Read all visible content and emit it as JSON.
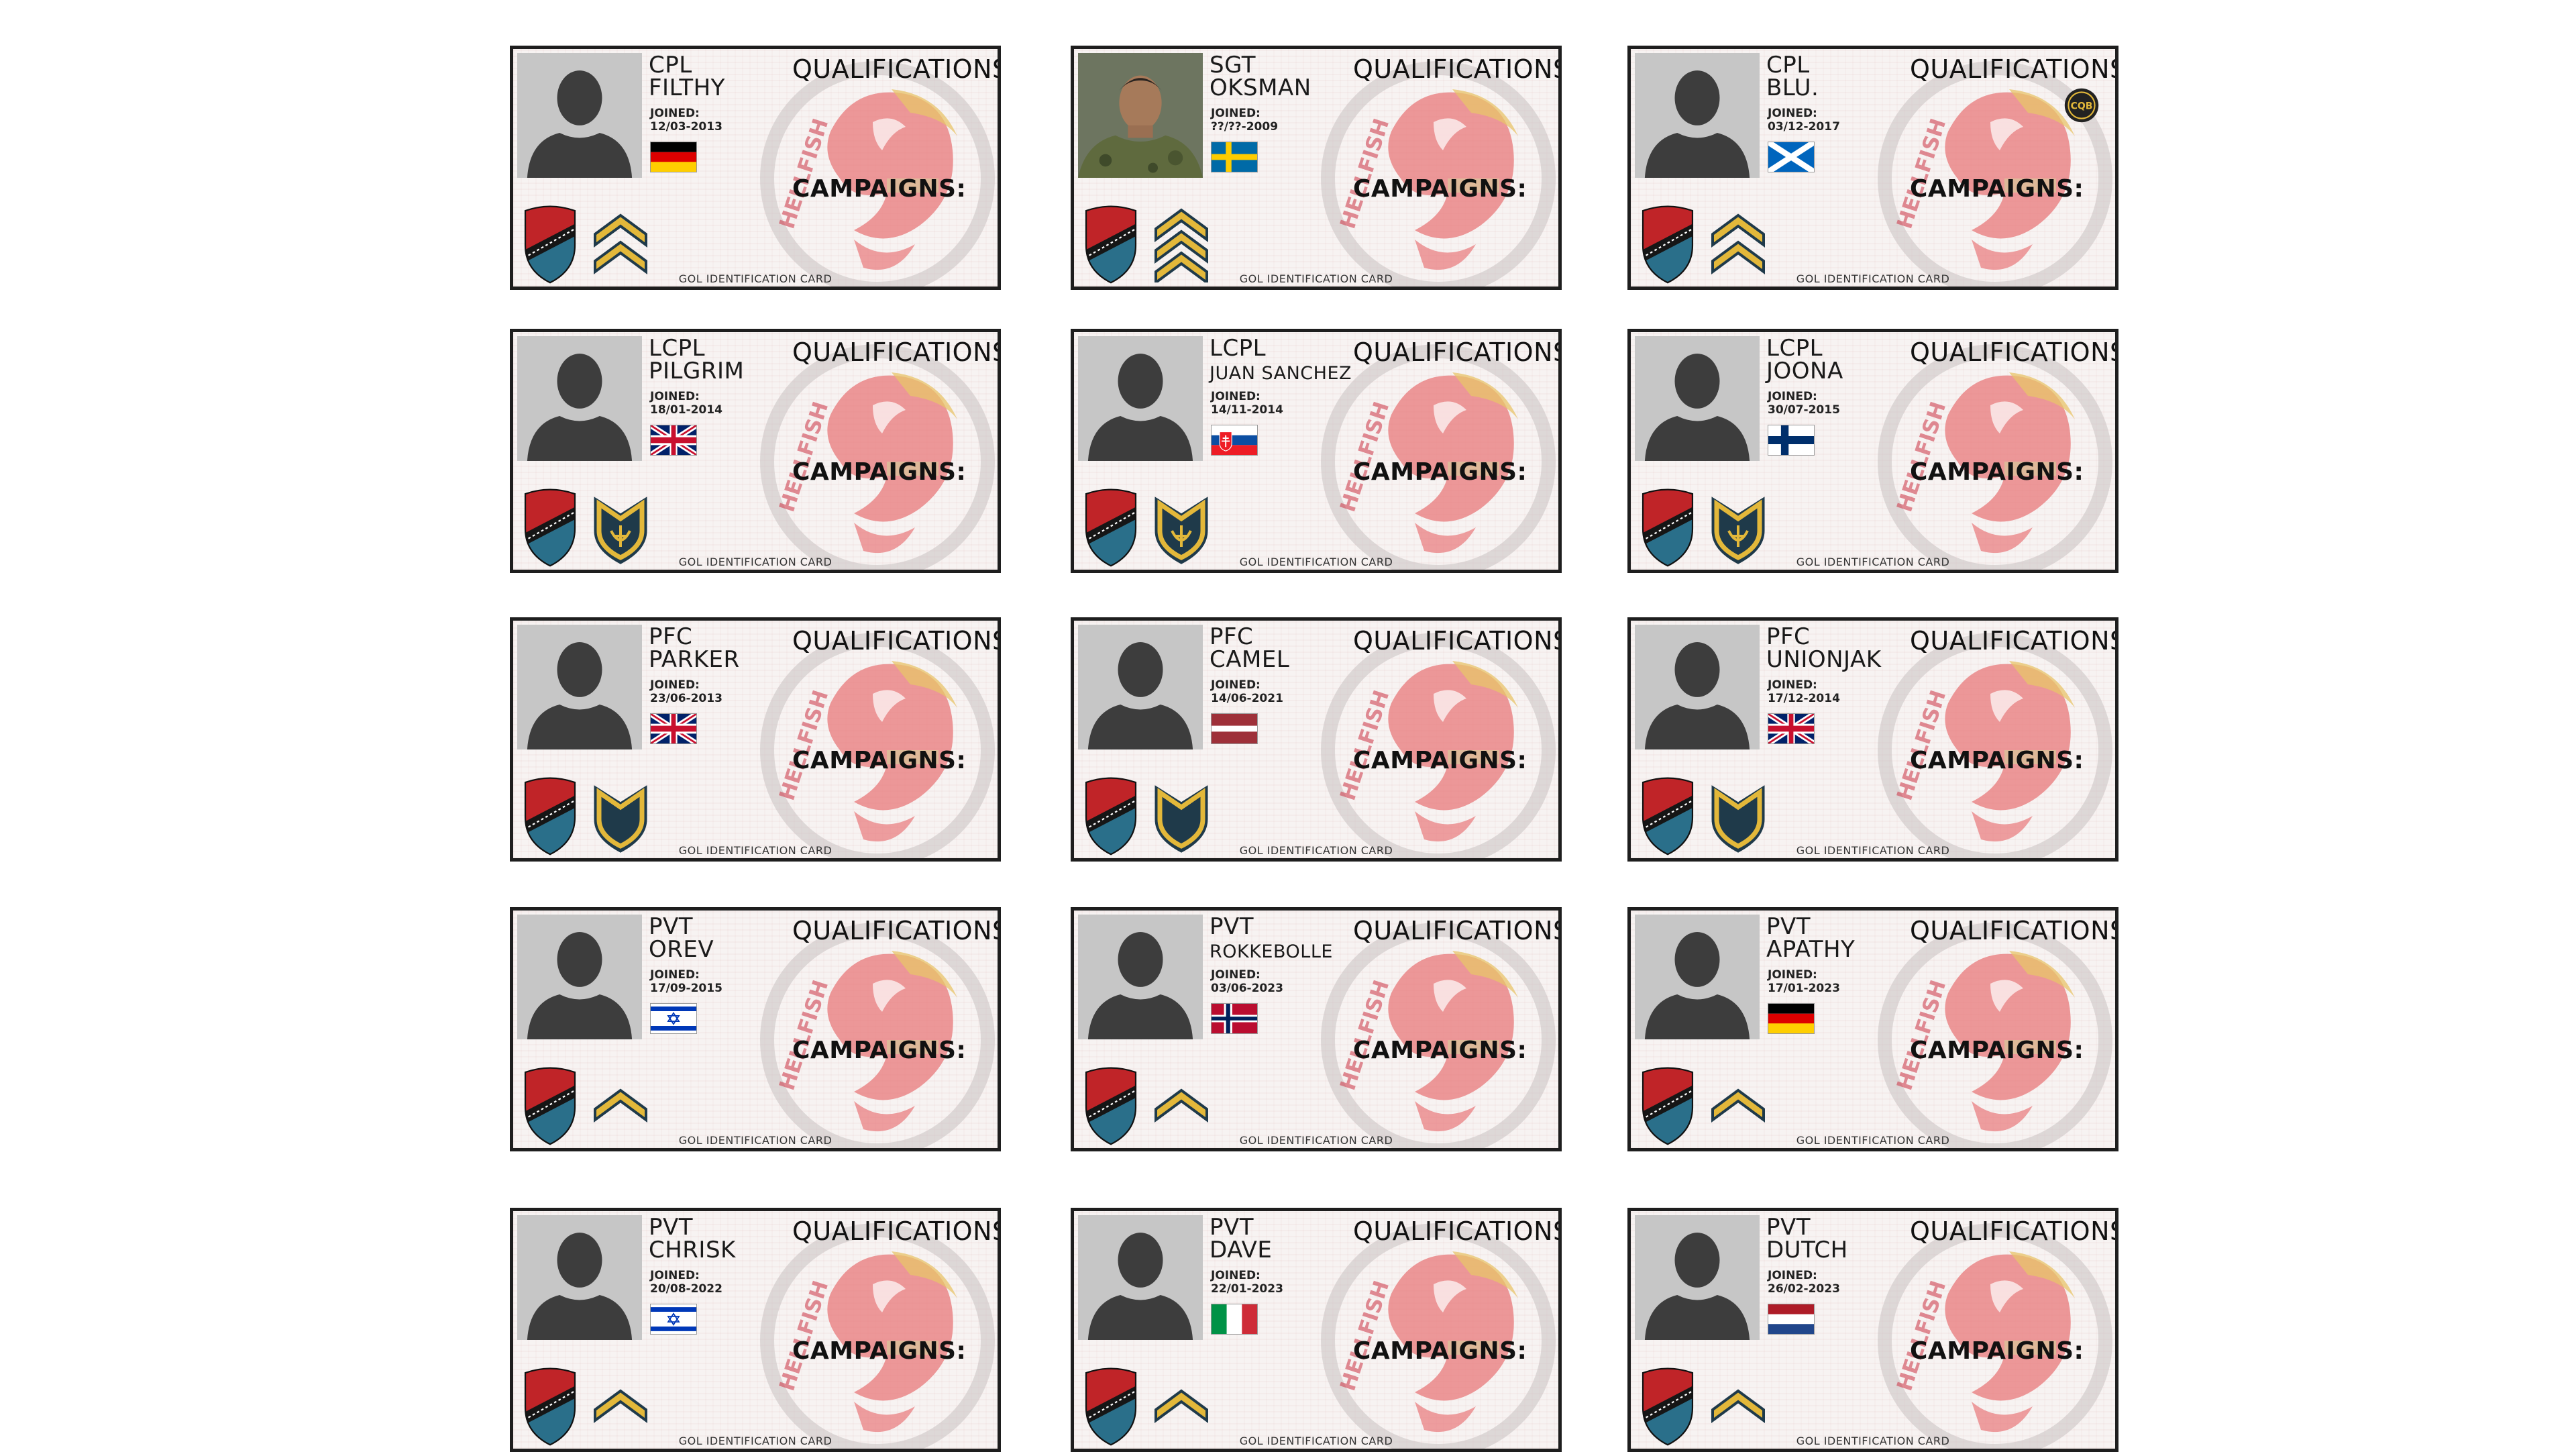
{
  "cards": [
    {
      "rank": "CPL",
      "name": "FILTHY",
      "joined_label": "JOINED:",
      "joined": "12/03-2013",
      "flag": "germany",
      "insignia": "cpl",
      "portrait": "silhouette"
    },
    {
      "rank": "SGT",
      "name": "OKSMAN",
      "joined_label": "JOINED:",
      "joined": "??/??-2009",
      "flag": "sweden",
      "insignia": "sgt",
      "portrait": "photo"
    },
    {
      "rank": "CPL",
      "name": "BLU.",
      "joined_label": "JOINED:",
      "joined": "03/12-2017",
      "flag": "scotland",
      "insignia": "cpl",
      "portrait": "silhouette",
      "badge": "CQB"
    },
    {
      "rank": "LCPL",
      "name": "PILGRIM",
      "joined_label": "JOINED:",
      "joined": "18/01-2014",
      "flag": "uk",
      "insignia": "lcpl",
      "portrait": "silhouette"
    },
    {
      "rank": "LCPL",
      "name": "JUAN SANCHEZ",
      "joined_label": "JOINED:",
      "joined": "14/11-2014",
      "flag": "slovakia",
      "insignia": "lcpl",
      "portrait": "silhouette"
    },
    {
      "rank": "LCPL",
      "name": "JOONA",
      "joined_label": "JOINED:",
      "joined": "30/07-2015",
      "flag": "finland",
      "insignia": "lcpl",
      "portrait": "silhouette"
    },
    {
      "rank": "PFC",
      "name": "PARKER",
      "joined_label": "JOINED:",
      "joined": "23/06-2013",
      "flag": "uk",
      "insignia": "pfc",
      "portrait": "silhouette"
    },
    {
      "rank": "PFC",
      "name": "CAMEL",
      "joined_label": "JOINED:",
      "joined": "14/06-2021",
      "flag": "latvia",
      "insignia": "pfc",
      "portrait": "silhouette"
    },
    {
      "rank": "PFC",
      "name": "UNIONJAK",
      "joined_label": "JOINED:",
      "joined": "17/12-2014",
      "flag": "uk",
      "insignia": "pfc",
      "portrait": "silhouette"
    },
    {
      "rank": "PVT",
      "name": "OREV",
      "joined_label": "JOINED:",
      "joined": "17/09-2015",
      "flag": "israel",
      "insignia": "pvt",
      "portrait": "silhouette"
    },
    {
      "rank": "PVT",
      "name": "ROKKEBOLLE",
      "joined_label": "JOINED:",
      "joined": "03/06-2023",
      "flag": "norway",
      "insignia": "pvt",
      "portrait": "silhouette"
    },
    {
      "rank": "PVT",
      "name": "APATHY",
      "joined_label": "JOINED:",
      "joined": "17/01-2023",
      "flag": "germany",
      "insignia": "pvt",
      "portrait": "silhouette"
    },
    {
      "rank": "PVT",
      "name": "CHRISK",
      "joined_label": "JOINED:",
      "joined": "20/08-2022",
      "flag": "israel",
      "insignia": "pvt",
      "portrait": "silhouette"
    },
    {
      "rank": "PVT",
      "name": "DAVE",
      "joined_label": "JOINED:",
      "joined": "22/01-2023",
      "flag": "italy",
      "insignia": "pvt",
      "portrait": "silhouette"
    },
    {
      "rank": "PVT",
      "name": "DUTCH",
      "joined_label": "JOINED:",
      "joined": "26/02-2023",
      "flag": "netherlands",
      "insignia": "pvt",
      "portrait": "silhouette"
    }
  ],
  "labels": {
    "qualifications": "QUALIFICATIONS:",
    "campaigns": "CAMPAIGNS:",
    "footer": "GOL IDENTIFICATION CARD",
    "emblem_text": "HELLFISH"
  },
  "colors": {
    "border": "#1e1e1e",
    "emblem_red": "#e8787a",
    "emblem_gold": "#e8c46a",
    "emblem_ring": "#b9b2b2",
    "chevron_gold": "#e3b83a",
    "chevron_dark": "#1f3a4a",
    "shield_red": "#c02428",
    "shield_teal": "#2a6f8a"
  }
}
